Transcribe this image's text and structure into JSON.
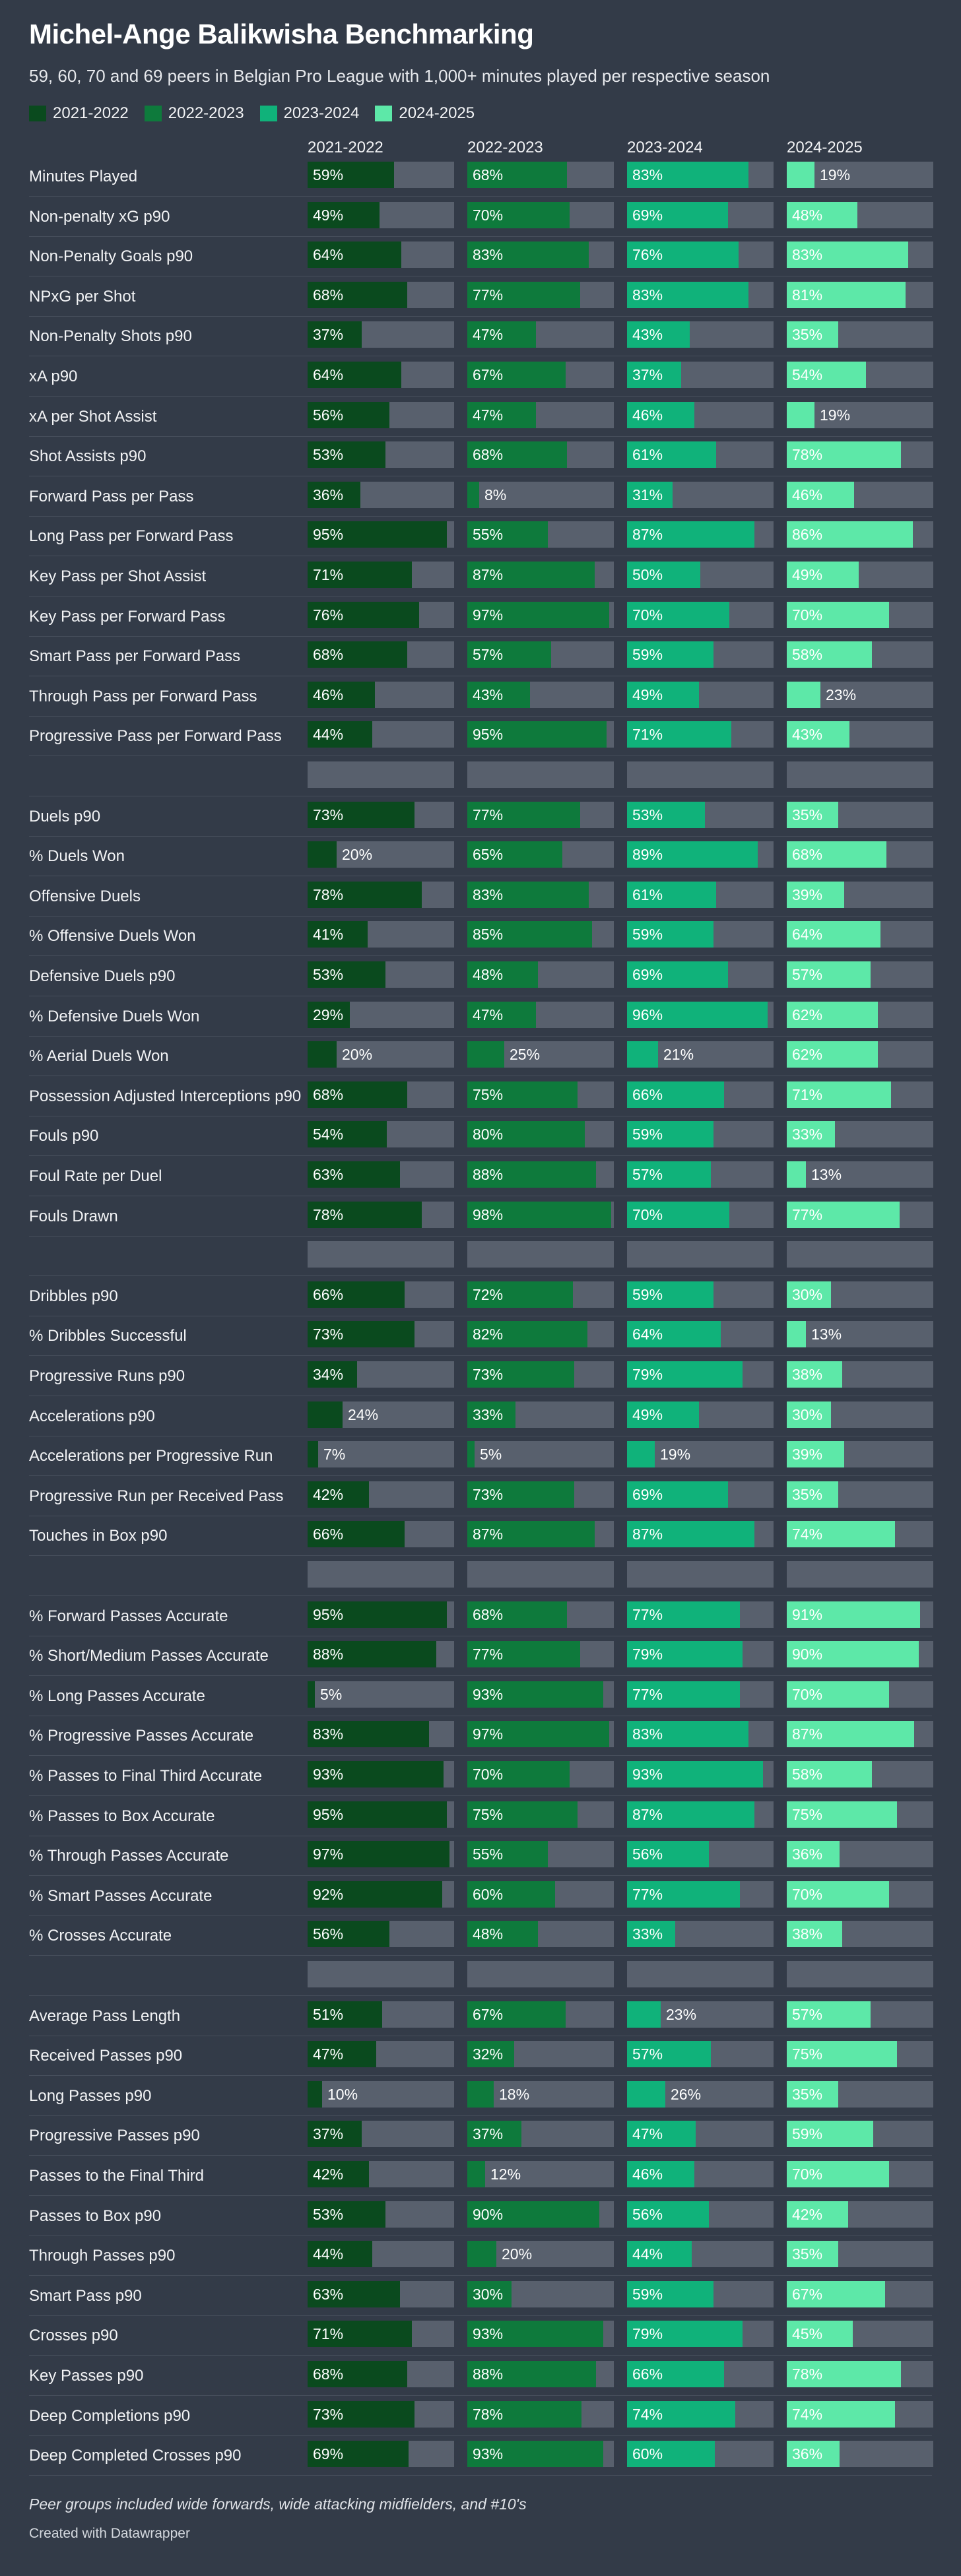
{
  "title": "Michel-Ange Balikwisha Benchmarking",
  "subtitle": "59, 60, 70 and 69 peers in Belgian Pro League with 1,000+ minutes played per respective season",
  "footnote": "Peer groups included wide forwards, wide attacking midfielders, and #10's",
  "credit": "Created with Datawrapper",
  "colors": {
    "background": "#333b48",
    "track": "#58606d",
    "seasons": [
      "#0a4a1e",
      "#0e7a3c",
      "#10b27a",
      "#5de8a8"
    ]
  },
  "chart_data": {
    "type": "bar",
    "title": "Michel-Ange Balikwisha Benchmarking",
    "unit": "percentile",
    "xlim": [
      0,
      100
    ],
    "seasons": [
      "2021-2022",
      "2022-2023",
      "2023-2024",
      "2024-2025"
    ],
    "rows": [
      {
        "label": "Minutes Played",
        "values": [
          59,
          68,
          83,
          19
        ]
      },
      {
        "label": "Non-penalty xG p90",
        "values": [
          49,
          70,
          69,
          48
        ]
      },
      {
        "label": "Non-Penalty Goals p90",
        "values": [
          64,
          83,
          76,
          83
        ]
      },
      {
        "label": "NPxG per Shot",
        "values": [
          68,
          77,
          83,
          81
        ]
      },
      {
        "label": "Non-Penalty Shots p90",
        "values": [
          37,
          47,
          43,
          35
        ]
      },
      {
        "label": "xA p90",
        "values": [
          64,
          67,
          37,
          54
        ]
      },
      {
        "label": "xA per Shot Assist",
        "values": [
          56,
          47,
          46,
          19
        ]
      },
      {
        "label": "Shot Assists p90",
        "values": [
          53,
          68,
          61,
          78
        ]
      },
      {
        "label": "Forward Pass per Pass",
        "values": [
          36,
          8,
          31,
          46
        ]
      },
      {
        "label": "Long Pass per Forward Pass",
        "values": [
          95,
          55,
          87,
          86
        ]
      },
      {
        "label": "Key Pass per Shot Assist",
        "values": [
          71,
          87,
          50,
          49
        ]
      },
      {
        "label": "Key Pass per Forward Pass",
        "values": [
          76,
          97,
          70,
          70
        ]
      },
      {
        "label": "Smart Pass per Forward Pass",
        "values": [
          68,
          57,
          59,
          58
        ]
      },
      {
        "label": "Through Pass per Forward Pass",
        "values": [
          46,
          43,
          49,
          23
        ]
      },
      {
        "label": "Progressive Pass per Forward Pass",
        "values": [
          44,
          95,
          71,
          43
        ]
      },
      {
        "label": "",
        "values": [
          null,
          null,
          null,
          null
        ]
      },
      {
        "label": "Duels p90",
        "values": [
          73,
          77,
          53,
          35
        ]
      },
      {
        "label": "% Duels Won",
        "values": [
          20,
          65,
          89,
          68
        ]
      },
      {
        "label": "Offensive Duels",
        "values": [
          78,
          83,
          61,
          39
        ]
      },
      {
        "label": "% Offensive Duels Won",
        "values": [
          41,
          85,
          59,
          64
        ]
      },
      {
        "label": "Defensive Duels p90",
        "values": [
          53,
          48,
          69,
          57
        ]
      },
      {
        "label": "% Defensive Duels Won",
        "values": [
          29,
          47,
          96,
          62
        ]
      },
      {
        "label": "% Aerial Duels Won",
        "values": [
          20,
          25,
          21,
          62
        ]
      },
      {
        "label": "Possession Adjusted Interceptions p90",
        "values": [
          68,
          75,
          66,
          71
        ]
      },
      {
        "label": "Fouls p90",
        "values": [
          54,
          80,
          59,
          33
        ]
      },
      {
        "label": "Foul Rate per Duel",
        "values": [
          63,
          88,
          57,
          13
        ]
      },
      {
        "label": "Fouls Drawn",
        "values": [
          78,
          98,
          70,
          77
        ]
      },
      {
        "label": "",
        "values": [
          null,
          null,
          null,
          null
        ]
      },
      {
        "label": "Dribbles p90",
        "values": [
          66,
          72,
          59,
          30
        ]
      },
      {
        "label": "% Dribbles Successful",
        "values": [
          73,
          82,
          64,
          13
        ]
      },
      {
        "label": "Progressive Runs p90",
        "values": [
          34,
          73,
          79,
          38
        ]
      },
      {
        "label": "Accelerations p90",
        "values": [
          24,
          33,
          49,
          30
        ]
      },
      {
        "label": "Accelerations per Progressive Run",
        "values": [
          7,
          5,
          19,
          39
        ]
      },
      {
        "label": "Progressive Run per Received Pass",
        "values": [
          42,
          73,
          69,
          35
        ]
      },
      {
        "label": "Touches in Box p90",
        "values": [
          66,
          87,
          87,
          74
        ]
      },
      {
        "label": "",
        "values": [
          null,
          null,
          null,
          null
        ]
      },
      {
        "label": "% Forward Passes Accurate",
        "values": [
          95,
          68,
          77,
          91
        ]
      },
      {
        "label": "% Short/Medium Passes Accurate",
        "values": [
          88,
          77,
          79,
          90
        ]
      },
      {
        "label": "% Long Passes Accurate",
        "values": [
          5,
          93,
          77,
          70
        ]
      },
      {
        "label": "% Progressive Passes Accurate",
        "values": [
          83,
          97,
          83,
          87
        ]
      },
      {
        "label": "% Passes to Final Third Accurate",
        "values": [
          93,
          70,
          93,
          58
        ]
      },
      {
        "label": "% Passes to Box Accurate",
        "values": [
          95,
          75,
          87,
          75
        ]
      },
      {
        "label": "% Through Passes Accurate",
        "values": [
          97,
          55,
          56,
          36
        ]
      },
      {
        "label": "% Smart Passes Accurate",
        "values": [
          92,
          60,
          77,
          70
        ]
      },
      {
        "label": "% Crosses Accurate",
        "values": [
          56,
          48,
          33,
          38
        ]
      },
      {
        "label": "",
        "values": [
          null,
          null,
          null,
          null
        ]
      },
      {
        "label": "Average Pass Length",
        "values": [
          51,
          67,
          23,
          57
        ]
      },
      {
        "label": "Received Passes p90",
        "values": [
          47,
          32,
          57,
          75
        ]
      },
      {
        "label": "Long Passes p90",
        "values": [
          10,
          18,
          26,
          35
        ]
      },
      {
        "label": "Progressive Passes p90",
        "values": [
          37,
          37,
          47,
          59
        ]
      },
      {
        "label": "Passes to the Final Third",
        "values": [
          42,
          12,
          46,
          70
        ]
      },
      {
        "label": "Passes to Box p90",
        "values": [
          53,
          90,
          56,
          42
        ]
      },
      {
        "label": "Through Passes p90",
        "values": [
          44,
          20,
          44,
          35
        ]
      },
      {
        "label": "Smart Pass p90",
        "values": [
          63,
          30,
          59,
          67
        ]
      },
      {
        "label": "Crosses p90",
        "values": [
          71,
          93,
          79,
          45
        ]
      },
      {
        "label": "Key Passes p90",
        "values": [
          68,
          88,
          66,
          78
        ]
      },
      {
        "label": "Deep Completions p90",
        "values": [
          73,
          78,
          74,
          74
        ]
      },
      {
        "label": "Deep Completed Crosses p90",
        "values": [
          69,
          93,
          60,
          36
        ]
      }
    ]
  }
}
